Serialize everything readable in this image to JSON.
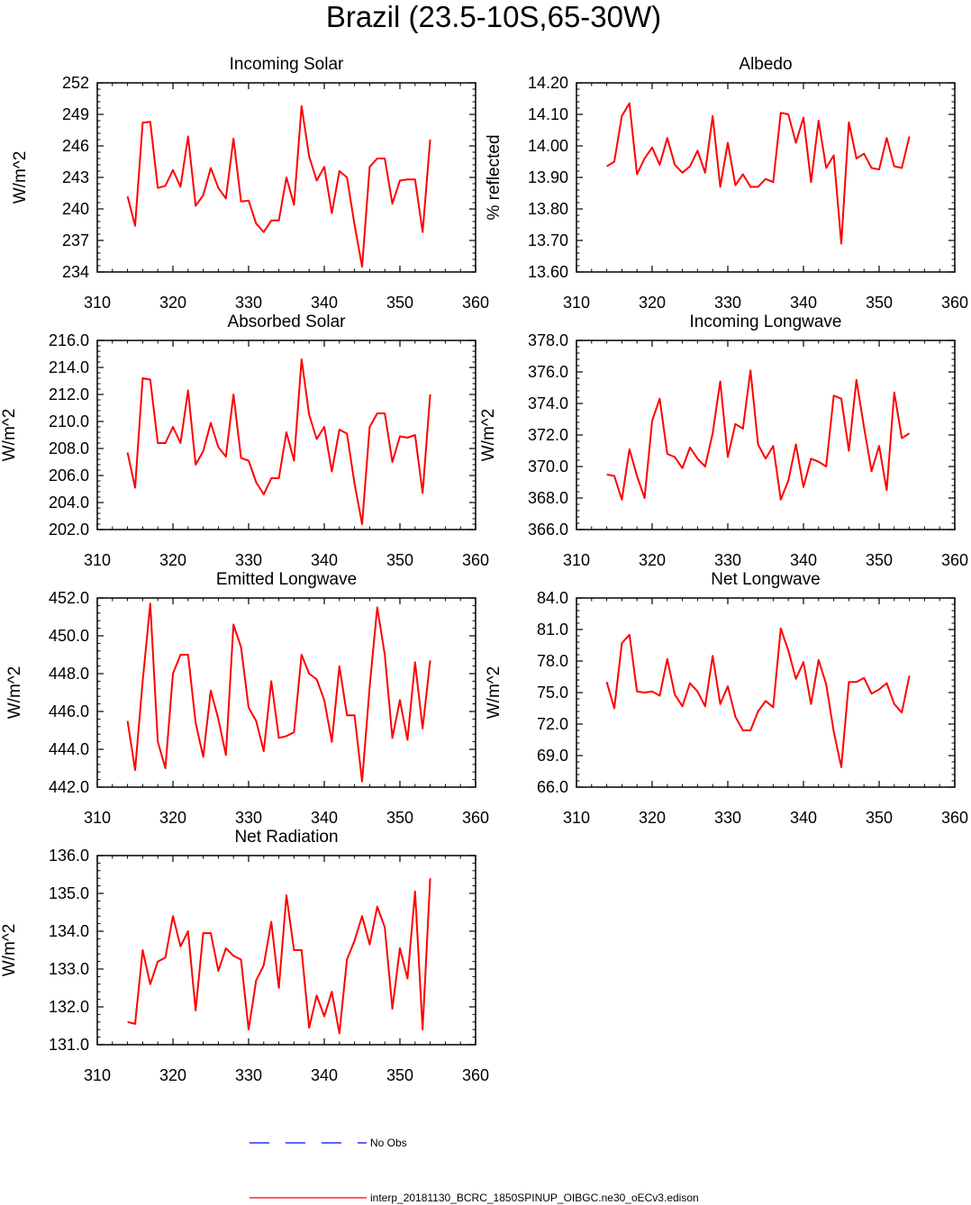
{
  "title": "Brazil (23.5-10S,65-30W)",
  "legend": {
    "obs_label": "No Obs",
    "obs_color": "#0000ff",
    "model_label": "interp_20181130_BCRC_1850SPINUP_OIBGC.ne30_oECv3.edison",
    "model_color": "#ff0000"
  },
  "chart_data": [
    {
      "type": "line",
      "title": "Incoming Solar",
      "xlabel": "",
      "ylabel": "W/m^2",
      "xlim": [
        310,
        360
      ],
      "ylim": [
        234,
        252
      ],
      "xticks": [
        310,
        320,
        330,
        340,
        350,
        360
      ],
      "xtick_labels": [
        "310",
        "320",
        "330",
        "340",
        "350",
        "360"
      ],
      "yticks": [
        234,
        237,
        240,
        243,
        246,
        249,
        252
      ],
      "ytick_labels": [
        "234",
        "237",
        "240",
        "243",
        "246",
        "249",
        "252"
      ],
      "grid": false,
      "series": [
        {
          "name": "interp_20181130_BCRC_1850SPINUP_OIBGC.ne30_oECv3.edison",
          "x": [
            314,
            315,
            316,
            317,
            318,
            319,
            320,
            321,
            322,
            323,
            324,
            325,
            326,
            327,
            328,
            329,
            330,
            331,
            332,
            333,
            334,
            335,
            336,
            337,
            338,
            339,
            340,
            341,
            342,
            343,
            344,
            345,
            346,
            347,
            348,
            349,
            350,
            351,
            352,
            353,
            354
          ],
          "values": [
            241.2,
            238.4,
            248.2,
            248.3,
            242.0,
            242.2,
            243.7,
            242.1,
            246.9,
            240.3,
            241.3,
            243.9,
            242.0,
            241.0,
            246.7,
            240.7,
            240.8,
            238.6,
            237.8,
            238.9,
            238.9,
            243.0,
            240.4,
            249.8,
            245.0,
            242.7,
            244.0,
            239.6,
            243.6,
            243.0,
            238.5,
            234.5,
            244.0,
            244.8,
            244.8,
            240.5,
            242.7,
            242.8,
            242.8,
            237.8,
            246.6
          ]
        }
      ]
    },
    {
      "type": "line",
      "title": "Albedo",
      "xlabel": "",
      "ylabel": "% reflected",
      "xlim": [
        310,
        360
      ],
      "ylim": [
        13.6,
        14.2
      ],
      "xticks": [
        310,
        320,
        330,
        340,
        350,
        360
      ],
      "xtick_labels": [
        "310",
        "320",
        "330",
        "340",
        "350",
        "360"
      ],
      "yticks": [
        13.6,
        13.7,
        13.8,
        13.9,
        14.0,
        14.1,
        14.2
      ],
      "ytick_labels": [
        "13.60",
        "13.70",
        "13.80",
        "13.90",
        "14.00",
        "14.10",
        "14.20"
      ],
      "grid": false,
      "series": [
        {
          "name": "interp_20181130_BCRC_1850SPINUP_OIBGC.ne30_oECv3.edison",
          "x": [
            314,
            315,
            316,
            317,
            318,
            319,
            320,
            321,
            322,
            323,
            324,
            325,
            326,
            327,
            328,
            329,
            330,
            331,
            332,
            333,
            334,
            335,
            336,
            337,
            338,
            339,
            340,
            341,
            342,
            343,
            344,
            345,
            346,
            347,
            348,
            349,
            350,
            351,
            352,
            353,
            354
          ],
          "values": [
            13.935,
            13.95,
            14.095,
            14.135,
            13.91,
            13.96,
            13.995,
            13.94,
            14.025,
            13.94,
            13.915,
            13.935,
            13.985,
            13.915,
            14.095,
            13.87,
            14.01,
            13.875,
            13.91,
            13.87,
            13.87,
            13.895,
            13.885,
            14.105,
            14.1,
            14.01,
            14.09,
            13.885,
            14.08,
            13.93,
            13.97,
            13.69,
            14.075,
            13.96,
            13.975,
            13.93,
            13.925,
            14.025,
            13.935,
            13.93,
            14.03
          ]
        }
      ]
    },
    {
      "type": "line",
      "title": "Absorbed Solar",
      "xlabel": "",
      "ylabel": "W/m^2",
      "xlim": [
        310,
        360
      ],
      "ylim": [
        202,
        216
      ],
      "xticks": [
        310,
        320,
        330,
        340,
        350,
        360
      ],
      "xtick_labels": [
        "310",
        "320",
        "330",
        "340",
        "350",
        "360"
      ],
      "yticks": [
        202,
        204,
        206,
        208,
        210,
        212,
        214,
        216
      ],
      "ytick_labels": [
        "202.0",
        "204.0",
        "206.0",
        "208.0",
        "210.0",
        "212.0",
        "214.0",
        "216.0"
      ],
      "grid": false,
      "series": [
        {
          "name": "interp_20181130_BCRC_1850SPINUP_OIBGC.ne30_oECv3.edison",
          "x": [
            314,
            315,
            316,
            317,
            318,
            319,
            320,
            321,
            322,
            323,
            324,
            325,
            326,
            327,
            328,
            329,
            330,
            331,
            332,
            333,
            334,
            335,
            336,
            337,
            338,
            339,
            340,
            341,
            342,
            343,
            344,
            345,
            346,
            347,
            348,
            349,
            350,
            351,
            352,
            353,
            354
          ],
          "values": [
            207.7,
            205.1,
            213.2,
            213.1,
            208.4,
            208.4,
            209.6,
            208.4,
            212.3,
            206.8,
            207.8,
            209.9,
            208.1,
            207.4,
            212.0,
            207.3,
            207.1,
            205.5,
            204.6,
            205.8,
            205.8,
            209.2,
            207.1,
            214.6,
            210.5,
            208.7,
            209.6,
            206.3,
            209.4,
            209.1,
            205.4,
            202.4,
            209.6,
            210.6,
            210.6,
            207.0,
            208.9,
            208.8,
            209.0,
            204.7,
            212.0
          ]
        }
      ]
    },
    {
      "type": "line",
      "title": "Incoming Longwave",
      "xlabel": "",
      "ylabel": "W/m^2",
      "xlim": [
        310,
        360
      ],
      "ylim": [
        366,
        378
      ],
      "xticks": [
        310,
        320,
        330,
        340,
        350,
        360
      ],
      "xtick_labels": [
        "310",
        "320",
        "330",
        "340",
        "350",
        "360"
      ],
      "yticks": [
        366,
        368,
        370,
        372,
        374,
        376,
        378
      ],
      "ytick_labels": [
        "366.0",
        "368.0",
        "370.0",
        "372.0",
        "374.0",
        "376.0",
        "378.0"
      ],
      "grid": false,
      "series": [
        {
          "name": "interp_20181130_BCRC_1850SPINUP_OIBGC.ne30_oECv3.edison",
          "x": [
            314,
            315,
            316,
            317,
            318,
            319,
            320,
            321,
            322,
            323,
            324,
            325,
            326,
            327,
            328,
            329,
            330,
            331,
            332,
            333,
            334,
            335,
            336,
            337,
            338,
            339,
            340,
            341,
            342,
            343,
            344,
            345,
            346,
            347,
            348,
            349,
            350,
            351,
            352,
            353,
            354
          ],
          "values": [
            369.5,
            369.4,
            367.9,
            371.1,
            369.4,
            368.0,
            372.9,
            374.3,
            370.8,
            370.6,
            369.9,
            371.2,
            370.5,
            370.0,
            372.1,
            375.4,
            370.6,
            372.7,
            372.4,
            376.1,
            371.4,
            370.5,
            371.3,
            367.9,
            369.1,
            371.4,
            368.7,
            370.5,
            370.3,
            370.0,
            374.5,
            374.3,
            371.0,
            375.5,
            372.5,
            369.7,
            371.3,
            368.5,
            374.7,
            371.8,
            372.1
          ]
        }
      ]
    },
    {
      "type": "line",
      "title": "Emitted Longwave",
      "xlabel": "",
      "ylabel": "W/m^2",
      "xlim": [
        310,
        360
      ],
      "ylim": [
        442,
        452
      ],
      "xticks": [
        310,
        320,
        330,
        340,
        350,
        360
      ],
      "xtick_labels": [
        "310",
        "320",
        "330",
        "340",
        "350",
        "360"
      ],
      "yticks": [
        442,
        444,
        446,
        448,
        450,
        452
      ],
      "ytick_labels": [
        "442.0",
        "444.0",
        "446.0",
        "448.0",
        "450.0",
        "452.0"
      ],
      "grid": false,
      "series": [
        {
          "name": "interp_20181130_BCRC_1850SPINUP_OIBGC.ne30_oECv3.edison",
          "x": [
            314,
            315,
            316,
            317,
            318,
            319,
            320,
            321,
            322,
            323,
            324,
            325,
            326,
            327,
            328,
            329,
            330,
            331,
            332,
            333,
            334,
            335,
            336,
            337,
            338,
            339,
            340,
            341,
            342,
            343,
            344,
            345,
            346,
            347,
            348,
            349,
            350,
            351,
            352,
            353,
            354
          ],
          "values": [
            445.5,
            442.9,
            447.6,
            451.7,
            444.4,
            443.0,
            448.0,
            449.0,
            449.0,
            445.4,
            443.6,
            447.1,
            445.6,
            443.7,
            450.6,
            449.4,
            446.2,
            445.5,
            443.9,
            447.6,
            444.6,
            444.7,
            444.9,
            449.0,
            448.0,
            447.7,
            446.6,
            444.4,
            448.4,
            445.8,
            445.8,
            442.3,
            447.3,
            451.5,
            449.0,
            444.6,
            446.6,
            444.5,
            448.6,
            445.1,
            448.7
          ]
        }
      ]
    },
    {
      "type": "line",
      "title": "Net Longwave",
      "xlabel": "",
      "ylabel": "W/m^2",
      "xlim": [
        310,
        360
      ],
      "ylim": [
        66,
        84
      ],
      "xticks": [
        310,
        320,
        330,
        340,
        350,
        360
      ],
      "xtick_labels": [
        "310",
        "320",
        "330",
        "340",
        "350",
        "360"
      ],
      "yticks": [
        66,
        69,
        72,
        75,
        78,
        81,
        84
      ],
      "ytick_labels": [
        "66.0",
        "69.0",
        "72.0",
        "75.0",
        "78.0",
        "81.0",
        "84.0"
      ],
      "grid": false,
      "series": [
        {
          "name": "interp_20181130_BCRC_1850SPINUP_OIBGC.ne30_oECv3.edison",
          "x": [
            314,
            315,
            316,
            317,
            318,
            319,
            320,
            321,
            322,
            323,
            324,
            325,
            326,
            327,
            328,
            329,
            330,
            331,
            332,
            333,
            334,
            335,
            336,
            337,
            338,
            339,
            340,
            341,
            342,
            343,
            344,
            345,
            346,
            347,
            348,
            349,
            350,
            351,
            352,
            353,
            354
          ],
          "values": [
            76.0,
            73.5,
            79.7,
            80.5,
            75.1,
            75.0,
            75.1,
            74.7,
            78.2,
            74.8,
            73.7,
            75.9,
            75.1,
            73.7,
            78.5,
            73.9,
            75.6,
            72.7,
            71.4,
            71.4,
            73.2,
            74.2,
            73.6,
            81.1,
            79.0,
            76.3,
            77.9,
            73.9,
            78.1,
            75.8,
            71.3,
            67.9,
            76.0,
            76.0,
            76.4,
            74.9,
            75.3,
            75.9,
            73.9,
            73.1,
            76.6
          ]
        }
      ]
    },
    {
      "type": "line",
      "title": "Net Radiation",
      "xlabel": "",
      "ylabel": "W/m^2",
      "xlim": [
        310,
        360
      ],
      "ylim": [
        131,
        136
      ],
      "xticks": [
        310,
        320,
        330,
        340,
        350,
        360
      ],
      "xtick_labels": [
        "310",
        "320",
        "330",
        "340",
        "350",
        "360"
      ],
      "yticks": [
        131,
        132,
        133,
        134,
        135,
        136
      ],
      "ytick_labels": [
        "131.0",
        "132.0",
        "133.0",
        "134.0",
        "135.0",
        "136.0"
      ],
      "grid": false,
      "series": [
        {
          "name": "interp_20181130_BCRC_1850SPINUP_OIBGC.ne30_oECv3.edison",
          "x": [
            314,
            315,
            316,
            317,
            318,
            319,
            320,
            321,
            322,
            323,
            324,
            325,
            326,
            327,
            328,
            329,
            330,
            331,
            332,
            333,
            334,
            335,
            336,
            337,
            338,
            339,
            340,
            341,
            342,
            343,
            344,
            345,
            346,
            347,
            348,
            349,
            350,
            351,
            352,
            353,
            354
          ],
          "values": [
            131.6,
            131.55,
            133.5,
            132.6,
            133.2,
            133.3,
            134.4,
            133.6,
            134.0,
            131.9,
            133.95,
            133.95,
            132.95,
            133.55,
            133.35,
            133.25,
            131.4,
            132.7,
            133.1,
            134.25,
            132.5,
            134.95,
            133.5,
            133.5,
            131.45,
            132.3,
            131.75,
            132.4,
            131.3,
            133.25,
            133.75,
            134.4,
            133.65,
            134.65,
            134.1,
            131.95,
            133.55,
            132.75,
            135.05,
            131.4,
            135.4
          ]
        }
      ]
    }
  ]
}
